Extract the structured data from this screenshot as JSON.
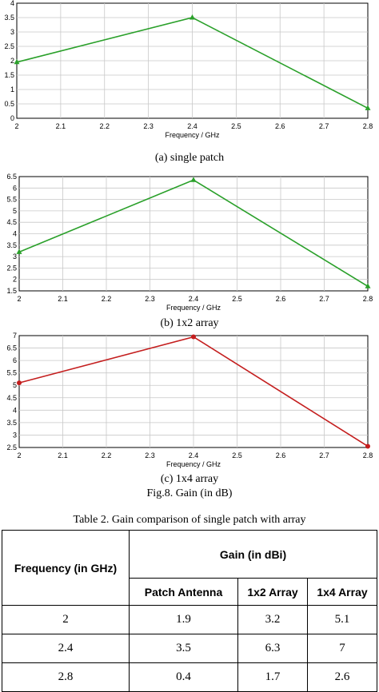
{
  "chart_data": [
    {
      "type": "line",
      "x": [
        2,
        2.4,
        2.8
      ],
      "series": [
        {
          "values": [
            1.95,
            3.5,
            0.35
          ],
          "color": "#2aa02a"
        }
      ],
      "xlabel": "Frequency / GHz",
      "xlim": [
        2,
        2.8
      ],
      "ylim": [
        0,
        4
      ],
      "xticks": [
        "2",
        "2.1",
        "2.2",
        "2.3",
        "2.4",
        "2.5",
        "2.6",
        "2.7",
        "2.8"
      ],
      "yticks": [
        "0",
        "0.5",
        "1",
        "1.5",
        "2",
        "2.5",
        "3",
        "3.5",
        "4"
      ],
      "grid": true,
      "caption": "(a)  single patch"
    },
    {
      "type": "line",
      "x": [
        2,
        2.4,
        2.8
      ],
      "series": [
        {
          "values": [
            3.2,
            6.35,
            1.7
          ],
          "color": "#2aa02a"
        }
      ],
      "xlabel": "Frequency / GHz",
      "xlim": [
        2,
        2.8
      ],
      "ylim": [
        1.5,
        6.5
      ],
      "xticks": [
        "2",
        "2.1",
        "2.2",
        "2.3",
        "2.4",
        "2.5",
        "2.6",
        "2.7",
        "2.8"
      ],
      "yticks": [
        "1.5",
        "2",
        "2.5",
        "3",
        "3.5",
        "4",
        "4.5",
        "5",
        "5.5",
        "6",
        "6.5"
      ],
      "grid": true,
      "caption": "(b) 1x2 array"
    },
    {
      "type": "line",
      "x": [
        2,
        2.4,
        2.8
      ],
      "series": [
        {
          "values": [
            5.1,
            6.95,
            2.55
          ],
          "color": "#c41e1e"
        }
      ],
      "xlabel": "Frequency / GHz",
      "xlim": [
        2,
        2.8
      ],
      "ylim": [
        2.5,
        7
      ],
      "xticks": [
        "2",
        "2.1",
        "2.2",
        "2.3",
        "2.4",
        "2.5",
        "2.6",
        "2.7",
        "2.8"
      ],
      "yticks": [
        "2.5",
        "3",
        "3.5",
        "4",
        "4.5",
        "5",
        "5.5",
        "6",
        "6.5",
        "7"
      ],
      "grid": true,
      "caption": "(c) 1x4 array"
    }
  ],
  "figure_caption": "Fig.8. Gain (in dB)",
  "table": {
    "title": "Table 2. Gain comparison of single patch with array",
    "freq_header": "Frequency (in GHz)",
    "gain_header": "Gain (in dBi)",
    "columns": [
      "Patch Antenna",
      "1x2 Array",
      "1x4 Array"
    ],
    "rows": [
      [
        "2",
        "1.9",
        "3.2",
        "5.1"
      ],
      [
        "2.4",
        "3.5",
        "6.3",
        "7"
      ],
      [
        "2.8",
        "0.4",
        "1.7",
        "2.6"
      ]
    ]
  }
}
